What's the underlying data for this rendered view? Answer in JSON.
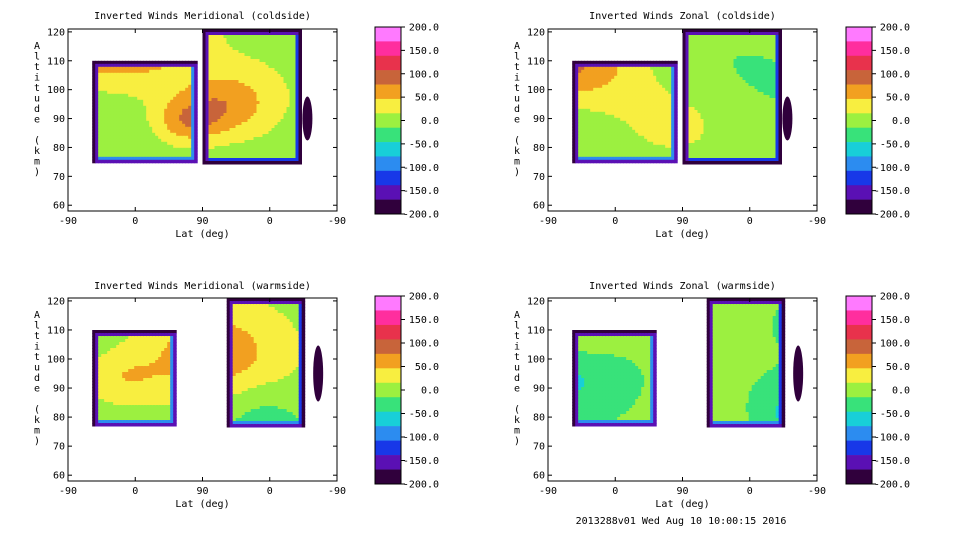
{
  "figure": {
    "footer": "2013288v01 Wed Aug 10 10:00:15 2016"
  },
  "colorbar": {
    "tick_labels": [
      "200.0",
      "150.0",
      "100.0",
      "50.0",
      "0.0",
      "-50.0",
      "-100.0",
      "-150.0",
      "-200.0"
    ],
    "colors": [
      "#ff7aff",
      "#ff2e9e",
      "#e8324c",
      "#c8643a",
      "#f2a020",
      "#f8ee40",
      "#9cf040",
      "#38e27a",
      "#18cfd8",
      "#2c8cf0",
      "#1838e8",
      "#5a10b4",
      "#30003c"
    ]
  },
  "chart_data": [
    {
      "type": "contour",
      "title": "Inverted Winds Meridional (coldside)",
      "xlabel": "Lat (deg)",
      "ylabel": "Altitude (km)",
      "x_tick_labels": [
        "-90",
        "0",
        "90",
        "0",
        "-90"
      ],
      "y_tick_labels": [
        "60",
        "70",
        "80",
        "90",
        "100",
        "110",
        "120"
      ],
      "ylim": [
        58,
        121
      ],
      "value_range": [
        -200,
        200
      ],
      "data_extent_km": [
        75,
        110
      ],
      "colorbar_ticks": [
        200,
        150,
        100,
        50,
        0,
        -50,
        -100,
        -150,
        -200
      ]
    },
    {
      "type": "contour",
      "title": "Inverted Winds Zonal (coldside)",
      "xlabel": "Lat (deg)",
      "ylabel": "Altitude (km)",
      "x_tick_labels": [
        "-90",
        "0",
        "90",
        "0",
        "-90"
      ],
      "y_tick_labels": [
        "60",
        "70",
        "80",
        "90",
        "100",
        "110",
        "120"
      ],
      "ylim": [
        58,
        121
      ],
      "value_range": [
        -200,
        200
      ],
      "data_extent_km": [
        75,
        110
      ],
      "colorbar_ticks": [
        200,
        150,
        100,
        50,
        0,
        -50,
        -100,
        -150,
        -200
      ]
    },
    {
      "type": "contour",
      "title": "Inverted Winds Meridional (warmside)",
      "xlabel": "Lat (deg)",
      "ylabel": "Altitude (km)",
      "x_tick_labels": [
        "-90",
        "0",
        "90",
        "0",
        "-90"
      ],
      "y_tick_labels": [
        "60",
        "70",
        "80",
        "90",
        "100",
        "110",
        "120"
      ],
      "ylim": [
        58,
        121
      ],
      "value_range": [
        -200,
        200
      ],
      "data_extent_km": [
        77,
        110
      ],
      "colorbar_ticks": [
        200,
        150,
        100,
        50,
        0,
        -50,
        -100,
        -150,
        -200
      ]
    },
    {
      "type": "contour",
      "title": "Inverted Winds Zonal (warmside)",
      "xlabel": "Lat (deg)",
      "ylabel": "Altitude (km)",
      "x_tick_labels": [
        "-90",
        "0",
        "90",
        "0",
        "-90"
      ],
      "y_tick_labels": [
        "60",
        "70",
        "80",
        "90",
        "100",
        "110",
        "120"
      ],
      "ylim": [
        58,
        121
      ],
      "value_range": [
        -200,
        200
      ],
      "data_extent_km": [
        77,
        110
      ],
      "colorbar_ticks": [
        200,
        150,
        100,
        50,
        0,
        -50,
        -100,
        -150,
        -200
      ]
    }
  ]
}
